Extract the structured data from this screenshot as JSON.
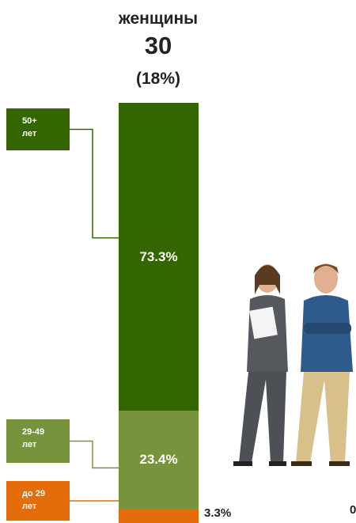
{
  "chart_data": {
    "type": "stacked_bar",
    "title": "женщины",
    "subtitle": "30",
    "annotation": "(18%)",
    "side_annotation": "0",
    "series": [
      {
        "name": "до 29\nлет",
        "color": "#e46c0a",
        "values": [
          3.3
        ],
        "value_labels": [
          "3.3%"
        ]
      },
      {
        "name": "29-49\nлет",
        "color": "#77933c",
        "values": [
          23.4
        ],
        "value_labels": [
          "23.4%"
        ]
      },
      {
        "name": "50+\nлет",
        "color": "#336600",
        "values": [
          73.3
        ],
        "value_labels": [
          "73.3%"
        ]
      }
    ]
  }
}
